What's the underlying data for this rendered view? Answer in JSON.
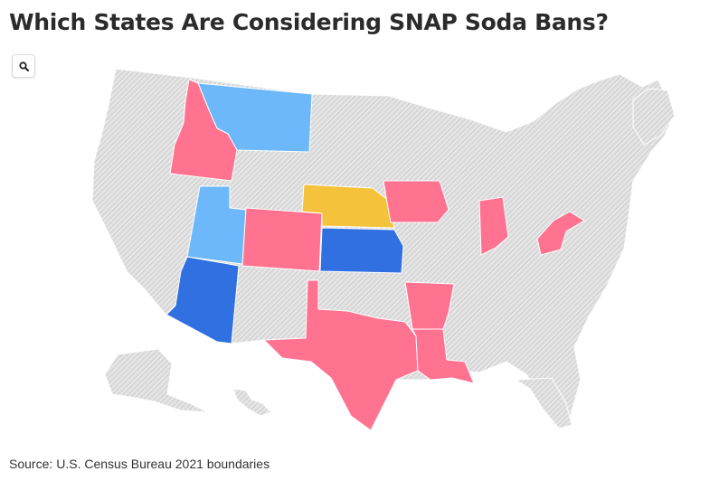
{
  "header": {
    "title": "Which States Are Considering SNAP Soda Bans?"
  },
  "controls": {
    "search_icon": "search-icon"
  },
  "map": {
    "colors": {
      "default_fill": "#e6e6e6",
      "hatch_fill": "#d3d3d3",
      "light_blue": "#6cb8fb",
      "dark_blue": "#3170e0",
      "yellow": "#f5c23b",
      "pink": "#ff7391"
    },
    "highlighted_states": [
      {
        "state": "Idaho",
        "color": "pink"
      },
      {
        "state": "Montana",
        "color": "light_blue"
      },
      {
        "state": "Utah",
        "color": "light_blue"
      },
      {
        "state": "Arizona",
        "color": "dark_blue"
      },
      {
        "state": "Colorado",
        "color": "pink"
      },
      {
        "state": "Nebraska",
        "color": "yellow"
      },
      {
        "state": "Kansas",
        "color": "dark_blue"
      },
      {
        "state": "Iowa",
        "color": "pink"
      },
      {
        "state": "Indiana",
        "color": "pink"
      },
      {
        "state": "West Virginia",
        "color": "pink"
      },
      {
        "state": "Texas",
        "color": "pink"
      },
      {
        "state": "Arkansas",
        "color": "pink"
      },
      {
        "state": "Louisiana",
        "color": "pink"
      }
    ]
  },
  "footer": {
    "source_label": "Source:",
    "source_text": "U.S. Census Bureau 2021 boundaries"
  }
}
